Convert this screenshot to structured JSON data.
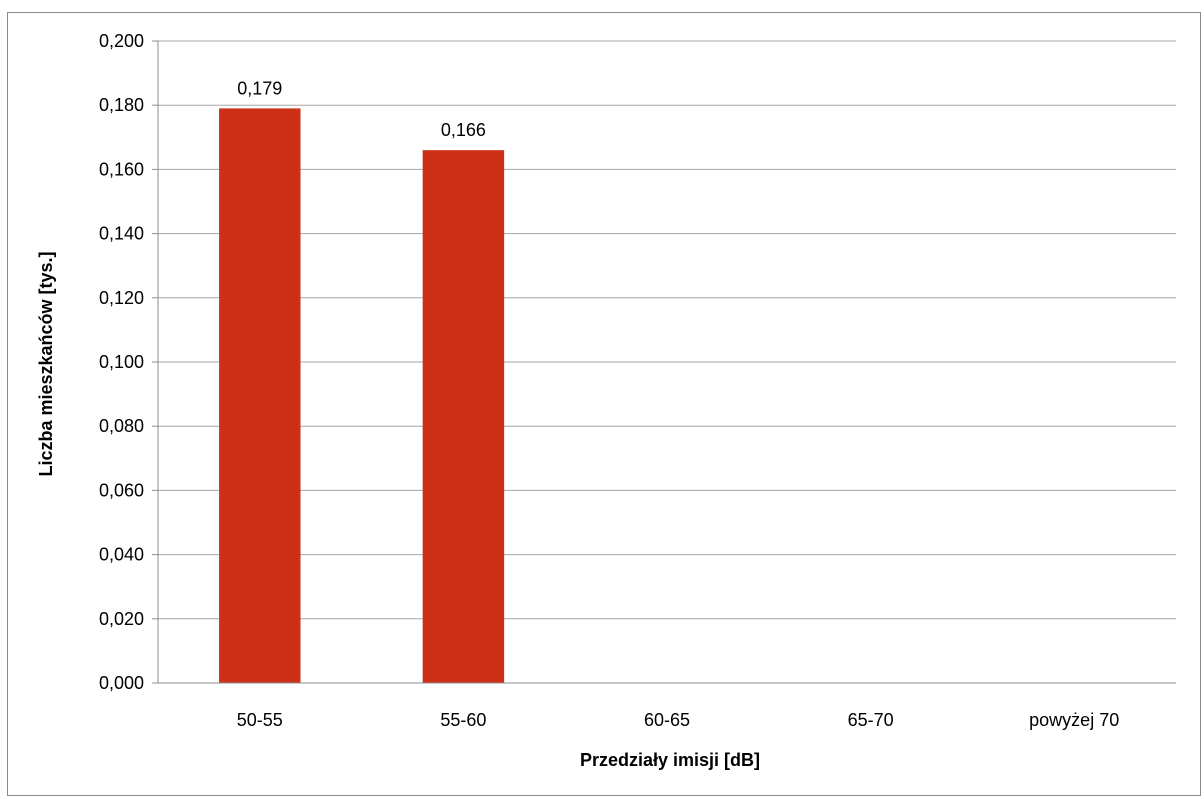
{
  "chart_data": {
    "type": "bar",
    "title": "",
    "xlabel": "Przedziały  imisji [dB]",
    "ylabel": "Liczba mieszkańców  [tys.]",
    "categories": [
      "50-55",
      "55-60",
      "60-65",
      "65-70",
      "powyżej 70"
    ],
    "values": [
      0.179,
      0.166,
      0,
      0,
      0
    ],
    "data_labels": [
      "0,179",
      "0,166",
      "",
      "",
      ""
    ],
    "ylim": [
      0,
      0.2
    ],
    "y_ticks": [
      "0,000",
      "0,020",
      "0,040",
      "0,060",
      "0,080",
      "0,100",
      "0,120",
      "0,140",
      "0,160",
      "0,180",
      "0,200"
    ],
    "grid": true,
    "legend": "none",
    "colors": {
      "bar": "#cc3118",
      "grid": "#a6a6a6",
      "axis": "#8c8c8c"
    }
  }
}
